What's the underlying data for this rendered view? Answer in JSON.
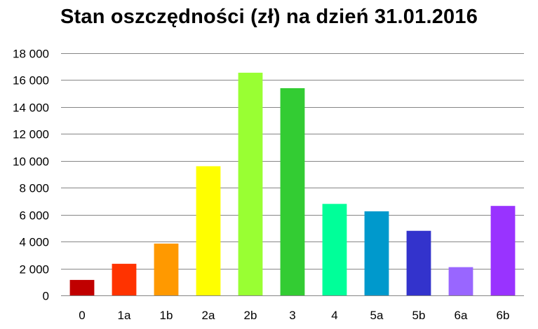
{
  "chart_data": {
    "type": "bar",
    "title": "Stan oszczędności (zł) na dzień 31.01.2016",
    "xlabel": "",
    "ylabel": "",
    "ylim": [
      0,
      18000
    ],
    "y_ticks": [
      0,
      2000,
      4000,
      6000,
      8000,
      10000,
      12000,
      14000,
      16000,
      18000
    ],
    "y_tick_labels": [
      "0",
      "2 000",
      "4 000",
      "6 000",
      "8 000",
      "10 000",
      "12 000",
      "14 000",
      "16 000",
      "18 000"
    ],
    "grid": true,
    "legend": "none",
    "categories": [
      "0",
      "1a",
      "1b",
      "2a",
      "2b",
      "3",
      "4",
      "5a",
      "5b",
      "6a",
      "6b"
    ],
    "values": [
      1150,
      2350,
      3850,
      9600,
      16550,
      15400,
      6800,
      6250,
      4800,
      2100,
      6650
    ],
    "colors": [
      "#c00000",
      "#ff3300",
      "#ff9900",
      "#ffff00",
      "#99ff33",
      "#33cc33",
      "#00ff99",
      "#0099cc",
      "#3333cc",
      "#9966ff",
      "#9933ff"
    ]
  }
}
